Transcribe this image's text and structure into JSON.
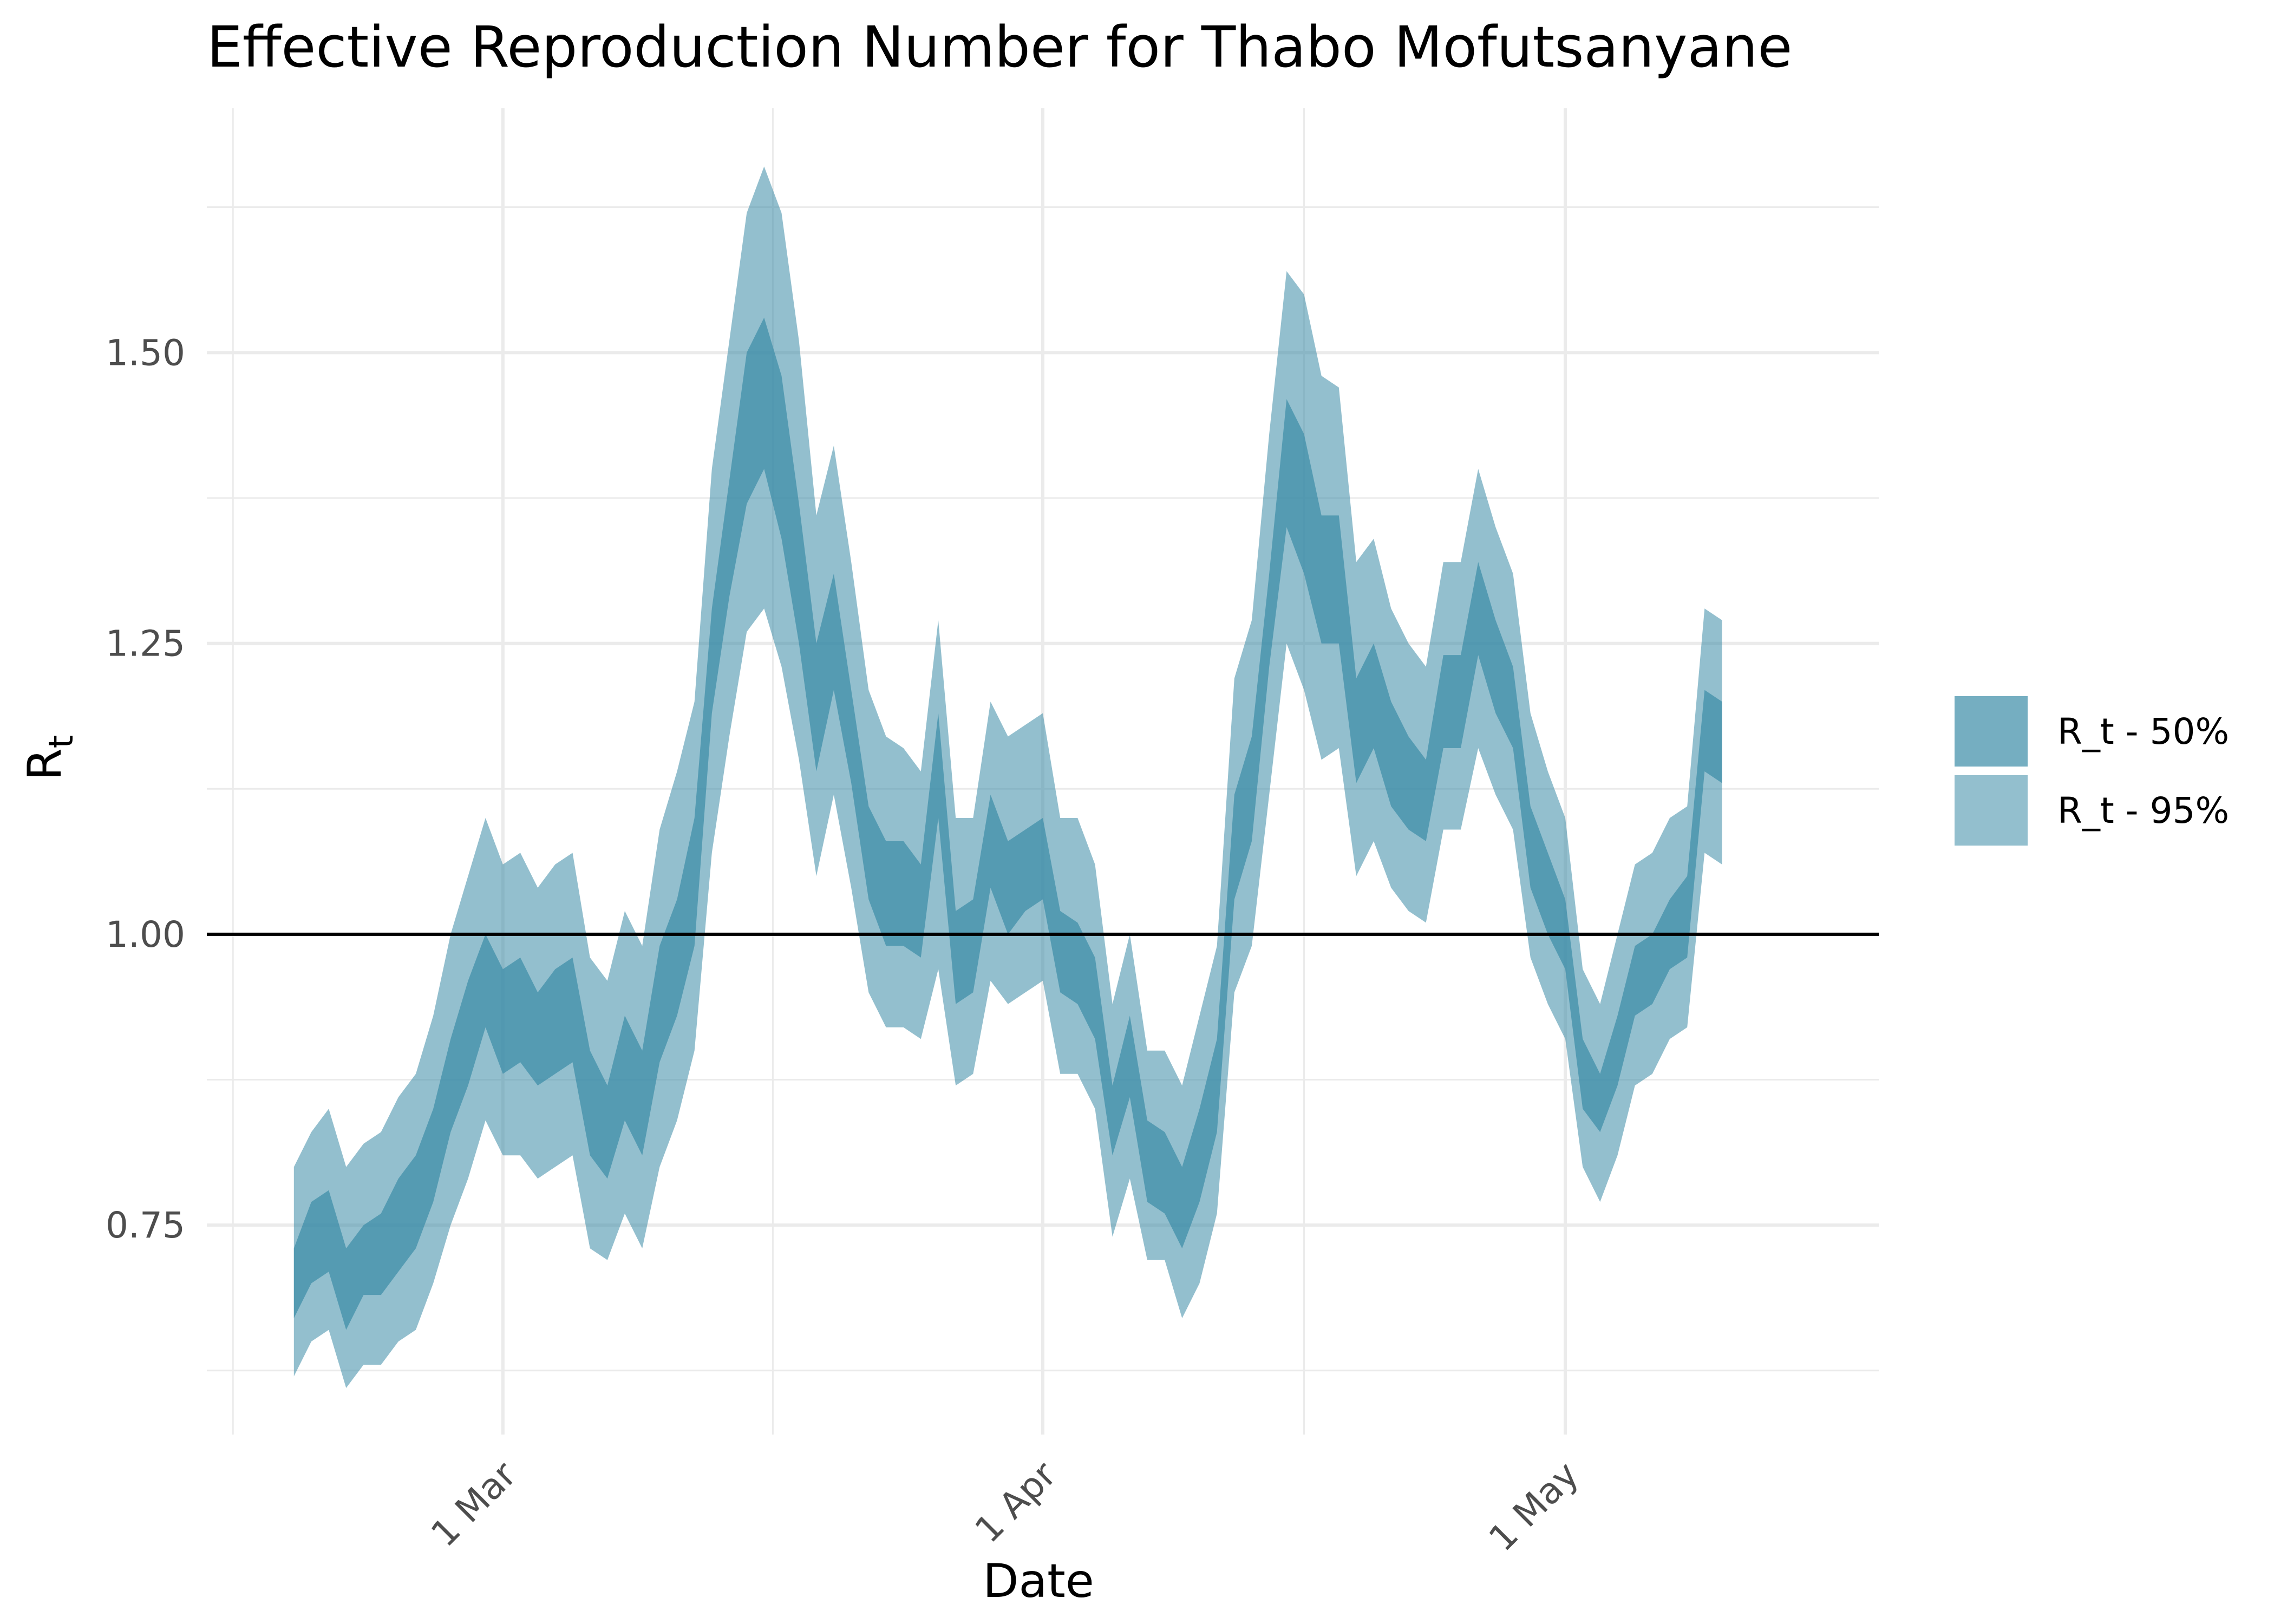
{
  "chart_data": {
    "type": "area",
    "title": "Effective Reproduction Number for Thabo Mofutsanyane",
    "xlabel": "Date",
    "ylabel": "R",
    "ylabel_subscript": "t",
    "x_tick_labels": [
      "1 Mar",
      "1 Apr",
      "1 May"
    ],
    "x_tick_dates": [
      "2020-03-01",
      "2020-04-01",
      "2020-05-01"
    ],
    "y_ticks": [
      0.75,
      1.0,
      1.25,
      1.5
    ],
    "y_tick_labels": [
      "0.75",
      "1.00",
      "1.25",
      "1.50"
    ],
    "ylim": [
      0.57,
      1.71
    ],
    "xlim": [
      "2020-02-13",
      "2020-05-19"
    ],
    "reference_line": 1.0,
    "grid": true,
    "legend_position": "right",
    "colors": {
      "band50": "#3a8ba6",
      "band95": "#3a8ba6",
      "reference": "#000000",
      "grid": "#ebebeb"
    },
    "x": [
      "2020-02-18",
      "2020-02-19",
      "2020-02-20",
      "2020-02-21",
      "2020-02-22",
      "2020-02-23",
      "2020-02-24",
      "2020-02-25",
      "2020-02-26",
      "2020-02-27",
      "2020-02-28",
      "2020-02-29",
      "2020-03-01",
      "2020-03-02",
      "2020-03-03",
      "2020-03-04",
      "2020-03-05",
      "2020-03-06",
      "2020-03-07",
      "2020-03-08",
      "2020-03-09",
      "2020-03-10",
      "2020-03-11",
      "2020-03-12",
      "2020-03-13",
      "2020-03-14",
      "2020-03-15",
      "2020-03-16",
      "2020-03-17",
      "2020-03-18",
      "2020-03-19",
      "2020-03-20",
      "2020-03-21",
      "2020-03-22",
      "2020-03-23",
      "2020-03-24",
      "2020-03-25",
      "2020-03-26",
      "2020-03-27",
      "2020-03-28",
      "2020-03-29",
      "2020-03-30",
      "2020-03-31",
      "2020-04-01",
      "2020-04-02",
      "2020-04-03",
      "2020-04-04",
      "2020-04-05",
      "2020-04-06",
      "2020-04-07",
      "2020-04-08",
      "2020-04-09",
      "2020-04-10",
      "2020-04-11",
      "2020-04-12",
      "2020-04-13",
      "2020-04-14",
      "2020-04-15",
      "2020-04-16",
      "2020-04-17",
      "2020-04-18",
      "2020-04-19",
      "2020-04-20",
      "2020-04-21",
      "2020-04-22",
      "2020-04-23",
      "2020-04-24",
      "2020-04-25",
      "2020-04-26",
      "2020-04-27",
      "2020-04-28",
      "2020-04-29",
      "2020-04-30",
      "2020-05-01",
      "2020-05-02",
      "2020-05-03",
      "2020-05-04",
      "2020-05-05",
      "2020-05-06",
      "2020-05-07",
      "2020-05-08",
      "2020-05-09",
      "2020-05-10"
    ],
    "series": [
      {
        "name": "R_t - 95%",
        "lower": [
          0.62,
          0.65,
          0.66,
          0.61,
          0.63,
          0.63,
          0.65,
          0.66,
          0.7,
          0.75,
          0.79,
          0.84,
          0.81,
          0.81,
          0.79,
          0.8,
          0.81,
          0.73,
          0.72,
          0.76,
          0.73,
          0.8,
          0.84,
          0.9,
          1.07,
          1.17,
          1.26,
          1.28,
          1.23,
          1.15,
          1.05,
          1.12,
          1.04,
          0.95,
          0.92,
          0.92,
          0.91,
          0.97,
          0.87,
          0.88,
          0.96,
          0.94,
          0.95,
          0.96,
          0.88,
          0.88,
          0.85,
          0.74,
          0.79,
          0.72,
          0.72,
          0.67,
          0.7,
          0.76,
          0.95,
          0.99,
          1.12,
          1.25,
          1.21,
          1.15,
          1.16,
          1.05,
          1.08,
          1.04,
          1.02,
          1.01,
          1.09,
          1.09,
          1.16,
          1.12,
          1.09,
          0.98,
          0.94,
          0.91,
          0.8,
          0.77,
          0.81,
          0.87,
          0.88,
          0.91,
          0.92,
          1.07,
          1.06
        ],
        "upper": [
          0.8,
          0.83,
          0.85,
          0.8,
          0.82,
          0.83,
          0.86,
          0.88,
          0.93,
          1.0,
          1.05,
          1.1,
          1.06,
          1.07,
          1.04,
          1.06,
          1.07,
          0.98,
          0.96,
          1.02,
          0.99,
          1.09,
          1.14,
          1.2,
          1.4,
          1.51,
          1.62,
          1.66,
          1.62,
          1.51,
          1.36,
          1.42,
          1.32,
          1.21,
          1.17,
          1.16,
          1.14,
          1.27,
          1.1,
          1.1,
          1.2,
          1.17,
          1.18,
          1.19,
          1.1,
          1.1,
          1.06,
          0.94,
          1.0,
          0.9,
          0.9,
          0.87,
          0.93,
          0.99,
          1.22,
          1.27,
          1.43,
          1.57,
          1.55,
          1.48,
          1.47,
          1.32,
          1.34,
          1.28,
          1.25,
          1.23,
          1.32,
          1.32,
          1.4,
          1.35,
          1.31,
          1.19,
          1.14,
          1.1,
          0.97,
          0.94,
          1.0,
          1.06,
          1.07,
          1.1,
          1.11,
          1.28,
          1.27
        ]
      },
      {
        "name": "R_t - 50%",
        "lower": [
          0.67,
          0.7,
          0.71,
          0.66,
          0.69,
          0.69,
          0.71,
          0.73,
          0.77,
          0.83,
          0.87,
          0.92,
          0.88,
          0.89,
          0.87,
          0.88,
          0.89,
          0.81,
          0.79,
          0.84,
          0.81,
          0.89,
          0.93,
          0.99,
          1.19,
          1.29,
          1.37,
          1.4,
          1.34,
          1.25,
          1.14,
          1.21,
          1.13,
          1.03,
          0.99,
          0.99,
          0.98,
          1.1,
          0.94,
          0.95,
          1.04,
          1.0,
          1.02,
          1.03,
          0.95,
          0.94,
          0.91,
          0.81,
          0.86,
          0.77,
          0.76,
          0.73,
          0.77,
          0.83,
          1.03,
          1.08,
          1.23,
          1.35,
          1.31,
          1.25,
          1.25,
          1.13,
          1.16,
          1.11,
          1.09,
          1.08,
          1.16,
          1.16,
          1.24,
          1.19,
          1.16,
          1.04,
          1.0,
          0.97,
          0.85,
          0.83,
          0.87,
          0.93,
          0.94,
          0.97,
          0.98,
          1.14,
          1.13
        ],
        "upper": [
          0.73,
          0.77,
          0.78,
          0.73,
          0.75,
          0.76,
          0.79,
          0.81,
          0.85,
          0.91,
          0.96,
          1.0,
          0.97,
          0.98,
          0.95,
          0.97,
          0.98,
          0.9,
          0.87,
          0.93,
          0.9,
          0.99,
          1.03,
          1.1,
          1.28,
          1.39,
          1.5,
          1.53,
          1.48,
          1.37,
          1.25,
          1.31,
          1.21,
          1.11,
          1.08,
          1.08,
          1.06,
          1.19,
          1.02,
          1.03,
          1.12,
          1.08,
          1.09,
          1.1,
          1.02,
          1.01,
          0.98,
          0.87,
          0.93,
          0.84,
          0.83,
          0.8,
          0.85,
          0.91,
          1.12,
          1.17,
          1.31,
          1.46,
          1.43,
          1.36,
          1.36,
          1.22,
          1.25,
          1.2,
          1.17,
          1.15,
          1.24,
          1.24,
          1.32,
          1.27,
          1.23,
          1.11,
          1.07,
          1.03,
          0.91,
          0.88,
          0.93,
          0.99,
          1.0,
          1.03,
          1.05,
          1.21,
          1.2
        ]
      }
    ]
  }
}
